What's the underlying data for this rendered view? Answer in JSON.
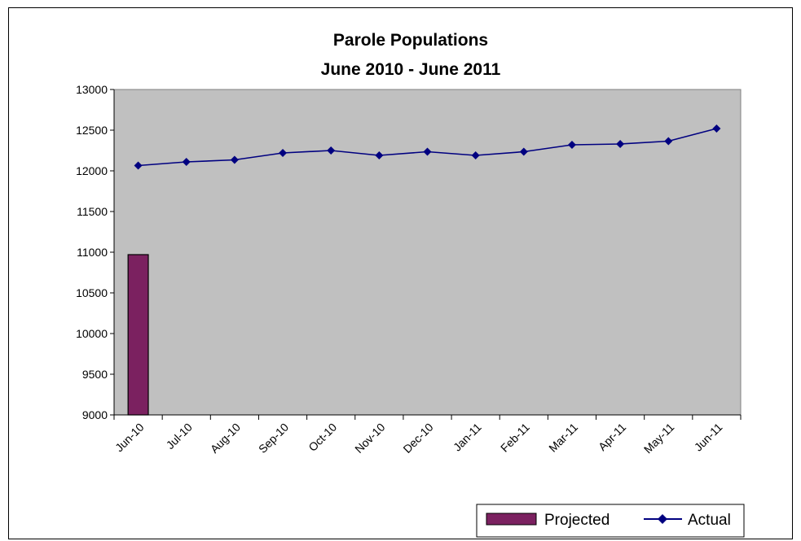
{
  "chart_data": {
    "type": "bar",
    "title": "Parole Populations",
    "subtitle": "June 2010 - June 2011",
    "categories": [
      "Jun-10",
      "Jul-10",
      "Aug-10",
      "Sep-10",
      "Oct-10",
      "Nov-10",
      "Dec-10",
      "Jan-11",
      "Feb-11",
      "Mar-11",
      "Apr-11",
      "May-11",
      "Jun-11"
    ],
    "ylim": [
      9000,
      13000
    ],
    "yticks": [
      9000,
      9500,
      10000,
      10500,
      11000,
      11500,
      12000,
      12500,
      13000
    ],
    "grid": false,
    "legend_position": "bottom-right",
    "series": [
      {
        "name": "Projected",
        "type": "bar",
        "color": "#7b2160",
        "values": [
          10970,
          null,
          null,
          null,
          null,
          null,
          null,
          null,
          null,
          null,
          null,
          null,
          null
        ]
      },
      {
        "name": "Actual",
        "type": "line",
        "marker": "diamond",
        "color": "#000080",
        "values": [
          12065,
          12110,
          12135,
          12220,
          12250,
          12190,
          12235,
          12190,
          12235,
          12320,
          12330,
          12365,
          12520
        ]
      }
    ],
    "plot_background": "#c0c0c0"
  }
}
